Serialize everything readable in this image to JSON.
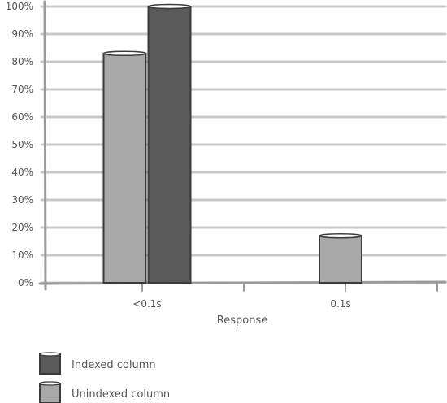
{
  "chart_data": {
    "type": "bar",
    "categories": [
      "<0.1s",
      "0.1s"
    ],
    "series": [
      {
        "name": "Unindexed column",
        "values": [
          83,
          17
        ],
        "color": "#a8a8a8"
      },
      {
        "name": "Indexed column",
        "values": [
          100,
          0
        ],
        "color": "#5a5a5a"
      }
    ],
    "y_ticks": [
      "0%",
      "10%",
      "20%",
      "30%",
      "40%",
      "50%",
      "60%",
      "70%",
      "80%",
      "90%",
      "100%"
    ],
    "ylim": [
      0,
      100
    ],
    "xlabel": "Response",
    "ylabel": "",
    "grid": true,
    "legend_position": "bottom-left",
    "colors": {
      "grid": "#c8c8c8",
      "axis": "#9a9a9a",
      "text": "#555555"
    }
  }
}
